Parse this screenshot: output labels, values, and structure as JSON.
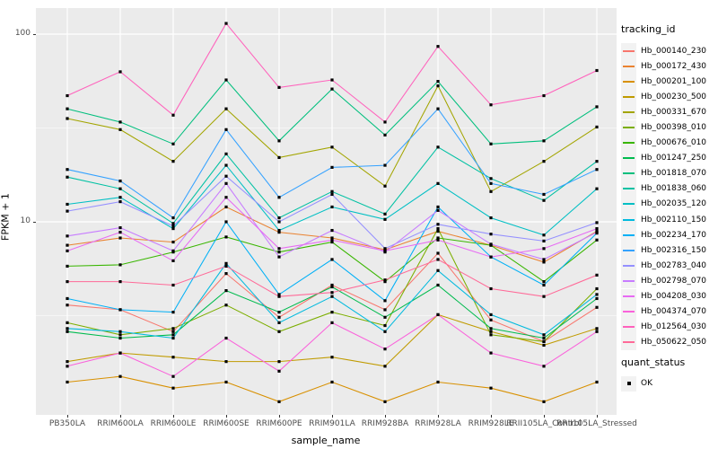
{
  "chart_data": {
    "type": "line",
    "title": "",
    "xlabel": "sample_name",
    "ylabel": "FPKM + 1",
    "y_scale": "log10",
    "ylim": [
      0.93,
      125
    ],
    "grid": true,
    "panel_bg": "#EBEBEB",
    "grid_color": "#FFFFFF",
    "tick_label_color": "#4D4D4D",
    "marker": "black-square",
    "yticks": [
      {
        "label": "100",
        "value": 100
      },
      {
        "label": "10",
        "value": 10
      }
    ],
    "minor_gridline_values": [
      31.62,
      3.162
    ],
    "categories": [
      "PB350LA",
      "RRIM600LA",
      "RRIM600LE",
      "RRIM600SE",
      "RRIM600PE",
      "RRIM901LA",
      "RRIM928BA",
      "RRIM928LA",
      "RRIM928LE",
      "RRII105LA_Control",
      "RRII105LA_Stressed"
    ],
    "legend": {
      "title": "tracking_id",
      "position": "right"
    },
    "quant_status": {
      "title": "quant_status",
      "items": [
        {
          "label": "OK",
          "marker": "black-square"
        }
      ]
    },
    "series": [
      {
        "name": "Hb_000140_230",
        "color": "#F8766D",
        "values": [
          3.6,
          3.4,
          2.6,
          5.3,
          3.1,
          4.6,
          3.4,
          6.8,
          3.0,
          2.3,
          3.5
        ]
      },
      {
        "name": "Hb_000172_430",
        "color": "#EA8331",
        "values": [
          7.5,
          8.2,
          7.8,
          12.0,
          8.8,
          8.2,
          7.1,
          8.9,
          7.5,
          6.1,
          8.9
        ]
      },
      {
        "name": "Hb_000201_100",
        "color": "#D89000",
        "values": [
          1.4,
          1.5,
          1.3,
          1.4,
          1.1,
          1.4,
          1.1,
          1.4,
          1.3,
          1.1,
          1.4
        ]
      },
      {
        "name": "Hb_000230_500",
        "color": "#C09B00",
        "values": [
          1.8,
          2.0,
          1.9,
          1.8,
          1.8,
          1.9,
          1.7,
          3.2,
          2.6,
          2.2,
          2.7
        ]
      },
      {
        "name": "Hb_000331_670",
        "color": "#A3A500",
        "values": [
          35.5,
          31.0,
          21.0,
          40.0,
          22.0,
          25.0,
          15.5,
          53.0,
          14.5,
          21.0,
          32.0
        ]
      },
      {
        "name": "Hb_000398_010",
        "color": "#7CAE00",
        "values": [
          2.9,
          2.5,
          2.7,
          3.6,
          2.6,
          3.3,
          2.8,
          9.2,
          2.5,
          2.3,
          4.4
        ]
      },
      {
        "name": "Hb_000676_010",
        "color": "#39B600",
        "values": [
          5.8,
          5.9,
          6.9,
          8.3,
          6.9,
          7.8,
          4.8,
          8.2,
          7.5,
          4.8,
          8.0
        ]
      },
      {
        "name": "Hb_001247_250",
        "color": "#00BB4E",
        "values": [
          2.6,
          2.4,
          2.5,
          4.3,
          3.3,
          4.5,
          3.1,
          4.6,
          2.7,
          2.4,
          3.9
        ]
      },
      {
        "name": "Hb_001818_070",
        "color": "#00BF7D",
        "values": [
          40.0,
          34.0,
          26.0,
          57.0,
          27.0,
          51.0,
          29.0,
          56.0,
          26.0,
          27.0,
          41.0
        ]
      },
      {
        "name": "Hb_001838_060",
        "color": "#00C1A3",
        "values": [
          17.3,
          15.0,
          9.8,
          23.0,
          10.5,
          14.5,
          11.0,
          25.0,
          17.0,
          13.0,
          21.0
        ]
      },
      {
        "name": "Hb_002035_120",
        "color": "#00BFC4",
        "values": [
          12.4,
          13.5,
          9.2,
          20.0,
          9.0,
          12.0,
          10.3,
          16.0,
          10.5,
          8.5,
          15.0
        ]
      },
      {
        "name": "Hb_002110_150",
        "color": "#00BADE",
        "values": [
          2.7,
          2.6,
          2.4,
          6.0,
          2.9,
          4.0,
          2.6,
          5.5,
          3.2,
          2.5,
          4.1
        ]
      },
      {
        "name": "Hb_002234_170",
        "color": "#00B0F6",
        "values": [
          3.9,
          3.4,
          3.3,
          10.0,
          4.1,
          6.3,
          3.8,
          12.0,
          6.5,
          4.6,
          8.7
        ]
      },
      {
        "name": "Hb_002316_150",
        "color": "#35A2FF",
        "values": [
          19.0,
          16.5,
          10.5,
          31.0,
          13.5,
          19.5,
          20.0,
          40.0,
          16.0,
          14.0,
          19.0
        ]
      },
      {
        "name": "Hb_002783_040",
        "color": "#9590FF",
        "values": [
          11.4,
          12.8,
          9.5,
          17.5,
          10.0,
          14.0,
          7.2,
          9.7,
          8.6,
          7.9,
          9.9
        ]
      },
      {
        "name": "Hb_002798_070",
        "color": "#C77CFF",
        "values": [
          8.4,
          9.3,
          7.0,
          16.0,
          6.5,
          9.0,
          6.9,
          11.5,
          7.6,
          6.3,
          8.8
        ]
      },
      {
        "name": "Hb_004208_030",
        "color": "#E76BF3",
        "values": [
          7.0,
          8.8,
          6.2,
          13.5,
          7.2,
          8.0,
          7.0,
          8.0,
          6.5,
          7.2,
          9.2
        ]
      },
      {
        "name": "Hb_004374_070",
        "color": "#FA62DB",
        "values": [
          1.7,
          2.0,
          1.5,
          2.4,
          1.6,
          2.9,
          2.1,
          3.2,
          2.0,
          1.7,
          2.6
        ]
      },
      {
        "name": "Hb_012564_030",
        "color": "#FF62BC",
        "values": [
          47.0,
          63.0,
          37.0,
          114.0,
          52.0,
          57.0,
          34.0,
          86.0,
          42.0,
          47.0,
          64.0
        ]
      },
      {
        "name": "Hb_050622_050",
        "color": "#FF6A98",
        "values": [
          4.8,
          4.8,
          4.6,
          5.8,
          4.0,
          4.2,
          4.9,
          6.3,
          4.4,
          4.0,
          5.2
        ]
      }
    ]
  }
}
